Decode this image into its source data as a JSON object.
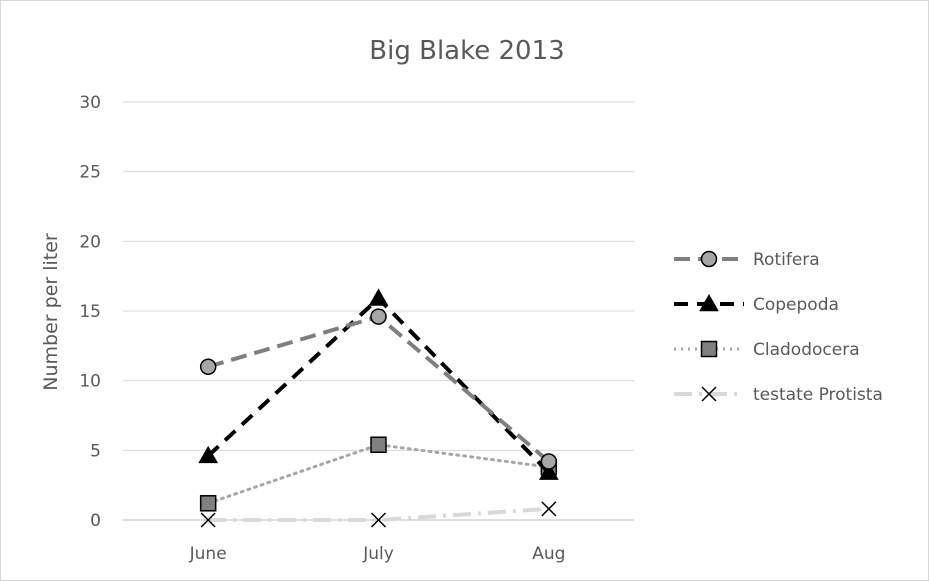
{
  "chart_data": {
    "type": "line",
    "title": "Big Blake 2013",
    "xlabel": "",
    "ylabel": "Number per liter",
    "categories": [
      "June",
      "July",
      "Aug"
    ],
    "ylim": [
      0,
      30
    ],
    "yticks": [
      "0",
      "5",
      "10",
      "15",
      "20",
      "25",
      "30"
    ],
    "grid": true,
    "legend_position": "right",
    "series": [
      {
        "name": "Rotifera",
        "values": [
          11.0,
          14.6,
          4.2
        ],
        "color": "#7f7f7f",
        "marker": "circle",
        "dash": "long-dash"
      },
      {
        "name": "Copepoda",
        "values": [
          4.6,
          15.9,
          3.4
        ],
        "color": "#000000",
        "marker": "triangle",
        "dash": "dash"
      },
      {
        "name": "Cladodocera",
        "values": [
          1.2,
          5.4,
          3.8
        ],
        "color": "#a6a6a6",
        "marker": "square",
        "dash": "dot"
      },
      {
        "name": "testate Protista",
        "values": [
          0.0,
          0.0,
          0.8
        ],
        "color": "#d9d9d9",
        "marker": "x",
        "dash": "dash-dot"
      }
    ]
  }
}
